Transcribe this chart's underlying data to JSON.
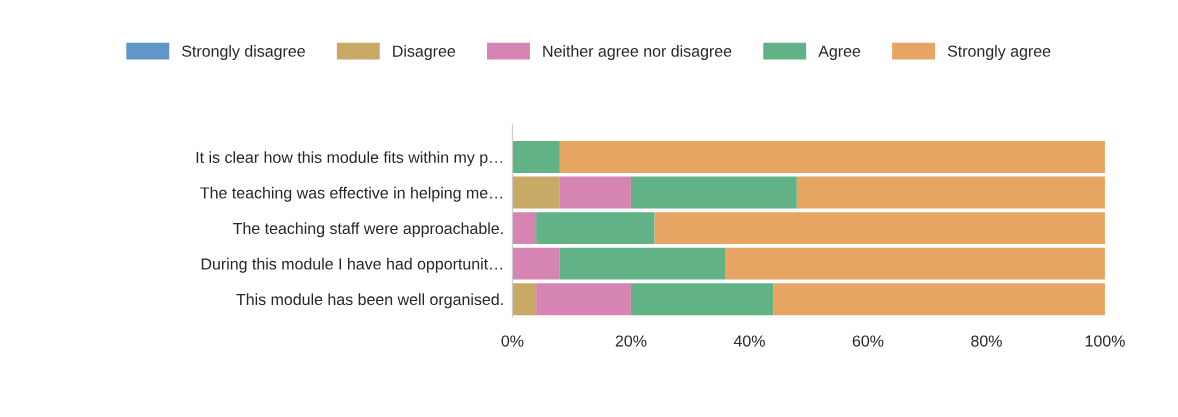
{
  "chart_data": {
    "type": "bar",
    "orientation": "horizontal",
    "stacked": true,
    "categories": [
      "It is clear how this module fits within my p…",
      "The teaching was effective in helping me…",
      "The teaching staff were approachable.",
      "During this module I have had opportunit…",
      "This module has been well organised."
    ],
    "series": [
      {
        "name": "Strongly disagree",
        "color": "#6096c8",
        "values": [
          0,
          0,
          0,
          0,
          0
        ]
      },
      {
        "name": "Disagree",
        "color": "#c8a965",
        "values": [
          0,
          8,
          0,
          0,
          4
        ]
      },
      {
        "name": "Neither agree nor disagree",
        "color": "#d684b4",
        "values": [
          0,
          12,
          4,
          8,
          16
        ]
      },
      {
        "name": "Agree",
        "color": "#62b287",
        "values": [
          8,
          28,
          20,
          28,
          24
        ]
      },
      {
        "name": "Strongly agree",
        "color": "#e6a563",
        "values": [
          92,
          52,
          76,
          64,
          56
        ]
      }
    ],
    "xlim": [
      0,
      100
    ],
    "xticks": [
      {
        "value": 0,
        "label": "0%"
      },
      {
        "value": 20,
        "label": "20%"
      },
      {
        "value": 40,
        "label": "40%"
      },
      {
        "value": 60,
        "label": "60%"
      },
      {
        "value": 80,
        "label": "80%"
      },
      {
        "value": 100,
        "label": "100%"
      }
    ],
    "legend": "top",
    "grid": false
  }
}
